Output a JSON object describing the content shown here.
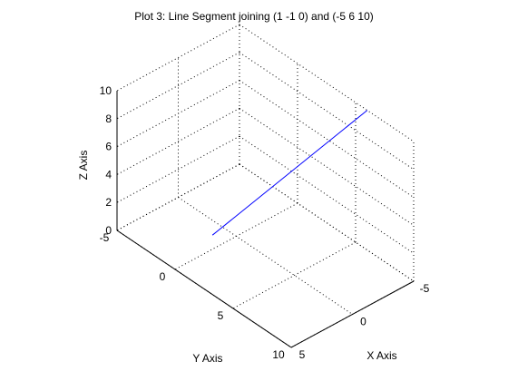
{
  "chart_data": {
    "type": "line",
    "title": "Plot 3: Line Segment joining (1 -1 0) and (-5 6 10)",
    "xlabel": "X Axis",
    "ylabel": "Y Axis",
    "zlabel": "Z Axis",
    "xlim": [
      -5,
      5
    ],
    "ylim": [
      -5,
      10
    ],
    "zlim": [
      0,
      10
    ],
    "x_ticks": [
      -5,
      0,
      5
    ],
    "y_ticks": [
      -5,
      0,
      5,
      10
    ],
    "z_ticks": [
      0,
      2,
      4,
      6,
      8,
      10
    ],
    "grid": true,
    "view": "3d",
    "series": [
      {
        "color": "#0000ff",
        "points": [
          {
            "x": 1,
            "y": -1,
            "z": 0
          },
          {
            "x": -5,
            "y": 6,
            "z": 10
          }
        ]
      }
    ]
  }
}
